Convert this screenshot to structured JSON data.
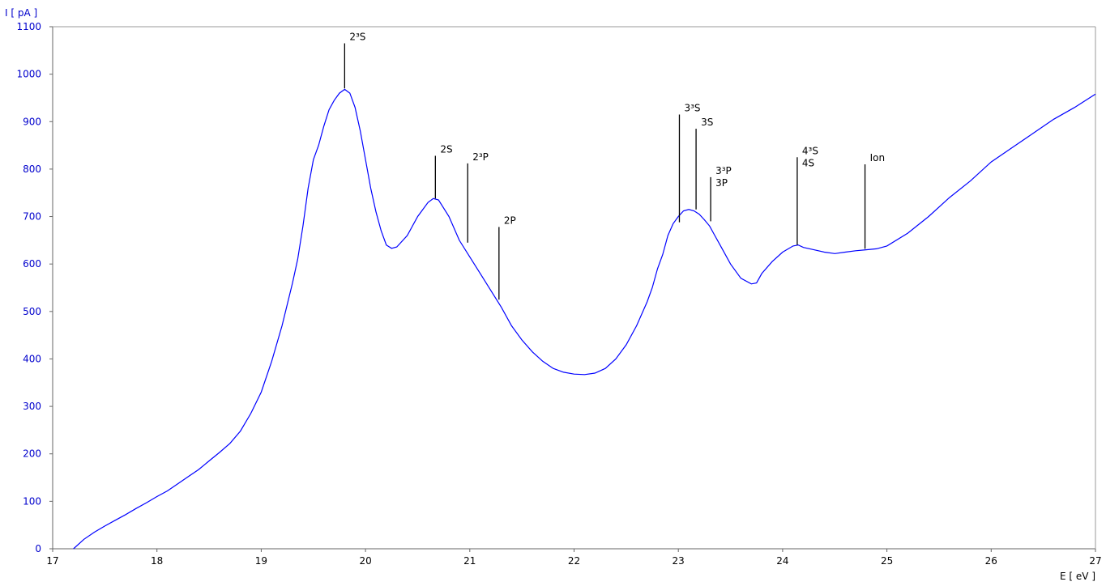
{
  "chart_data": {
    "type": "line",
    "title": "",
    "xlabel": "E [ eV ]",
    "ylabel": "I [ pA ]",
    "xlim": [
      17,
      27
    ],
    "ylim": [
      0,
      1100
    ],
    "x_ticks": [
      17,
      18,
      19,
      20,
      21,
      22,
      23,
      24,
      25,
      26,
      27
    ],
    "y_ticks": [
      0,
      100,
      200,
      300,
      400,
      500,
      600,
      700,
      800,
      900,
      1000,
      1100
    ],
    "grid": false,
    "line_color": "#0000ff",
    "series": [
      {
        "x": [
          17.2,
          17.3,
          17.4,
          17.5,
          17.6,
          17.7,
          17.8,
          17.9,
          18.0,
          18.1,
          18.2,
          18.3,
          18.4,
          18.5,
          18.6,
          18.7,
          18.8,
          18.9,
          19.0,
          19.1,
          19.2,
          19.3,
          19.35,
          19.4,
          19.45,
          19.5,
          19.55,
          19.6,
          19.65,
          19.7,
          19.75,
          19.8,
          19.85,
          19.9,
          19.95,
          20.0,
          20.05,
          20.1,
          20.15,
          20.2,
          20.25,
          20.3,
          20.4,
          20.5,
          20.6,
          20.65,
          20.7,
          20.8,
          20.9,
          21.0,
          21.1,
          21.2,
          21.3,
          21.4,
          21.5,
          21.6,
          21.7,
          21.8,
          21.9,
          22.0,
          22.1,
          22.2,
          22.3,
          22.4,
          22.5,
          22.6,
          22.7,
          22.75,
          22.8,
          22.85,
          22.9,
          22.95,
          23.0,
          23.05,
          23.1,
          23.15,
          23.2,
          23.25,
          23.3,
          23.35,
          23.4,
          23.5,
          23.6,
          23.7,
          23.75,
          23.8,
          23.9,
          24.0,
          24.1,
          24.15,
          24.2,
          24.3,
          24.4,
          24.5,
          24.6,
          24.7,
          24.8,
          24.9,
          25.0,
          25.2,
          25.4,
          25.6,
          25.8,
          26.0,
          26.2,
          26.4,
          26.6,
          26.8,
          27.0
        ],
        "y": [
          0,
          20,
          35,
          48,
          60,
          72,
          85,
          97,
          110,
          122,
          137,
          152,
          167,
          185,
          203,
          222,
          248,
          285,
          330,
          395,
          470,
          560,
          610,
          680,
          760,
          820,
          850,
          890,
          925,
          945,
          960,
          968,
          960,
          930,
          880,
          820,
          760,
          710,
          670,
          640,
          633,
          636,
          660,
          700,
          730,
          738,
          735,
          700,
          650,
          615,
          580,
          545,
          510,
          470,
          440,
          415,
          395,
          380,
          372,
          368,
          367,
          370,
          380,
          400,
          430,
          470,
          520,
          550,
          590,
          620,
          660,
          685,
          700,
          712,
          715,
          712,
          705,
          693,
          680,
          660,
          640,
          600,
          570,
          558,
          560,
          580,
          605,
          625,
          638,
          640,
          635,
          630,
          625,
          622,
          625,
          628,
          630,
          632,
          638,
          665,
          700,
          740,
          775,
          815,
          845,
          875,
          905,
          930,
          958
        ]
      }
    ],
    "annotations": [
      {
        "x": 19.8,
        "top": 1065,
        "bottom": 970,
        "label": "2³S"
      },
      {
        "x": 20.67,
        "top": 828,
        "bottom": 738,
        "label": "2S"
      },
      {
        "x": 20.98,
        "top": 812,
        "bottom": 645,
        "label": "2³P"
      },
      {
        "x": 21.28,
        "top": 678,
        "bottom": 525,
        "label": "2P"
      },
      {
        "x": 23.01,
        "top": 915,
        "bottom": 688,
        "label": "3³S"
      },
      {
        "x": 23.17,
        "top": 885,
        "bottom": 715,
        "label": "3S"
      },
      {
        "x": 23.31,
        "top": 783,
        "bottom": 690,
        "label": "3³P"
      },
      {
        "x": 23.31,
        "top": 783,
        "bottom": 690,
        "label": "3P"
      },
      {
        "x": 24.14,
        "top": 825,
        "bottom": 640,
        "label": "4³S"
      },
      {
        "x": 24.14,
        "top": 825,
        "bottom": 640,
        "label": "4S"
      },
      {
        "x": 24.79,
        "top": 810,
        "bottom": 632,
        "label": "Ion"
      }
    ]
  }
}
